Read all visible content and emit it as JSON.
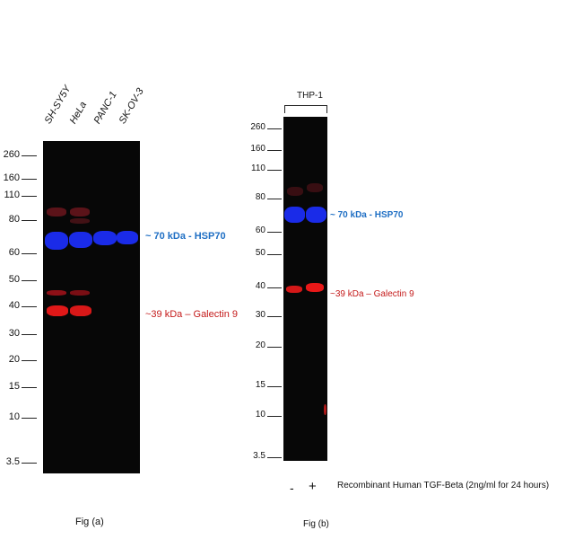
{
  "fig_a": {
    "lanes": [
      "SH-SY5Y",
      "HeLa",
      "PANC-1",
      "SK-OV-3"
    ],
    "markers": [
      "260",
      "160",
      "110",
      "80",
      "60",
      "50",
      "40",
      "30",
      "20",
      "15",
      "10",
      "3.5"
    ],
    "hsp70_label": "~ 70 kDa - HSP70",
    "galectin_label": "~39 kDa – Galectin 9",
    "caption": "Fig (a)"
  },
  "fig_b": {
    "group_label": "THP-1",
    "markers": [
      "260",
      "160",
      "110",
      "80",
      "60",
      "50",
      "40",
      "30",
      "20",
      "15",
      "10",
      "3.5"
    ],
    "hsp70_label": "~ 70 kDa - HSP70",
    "galectin_label": "~39 kDa – Galectin 9",
    "treatment_minus": "-",
    "treatment_plus": "+",
    "treatment_label": "Recombinant Human TGF-Beta (2ng/ml for 24 hours)",
    "caption": "Fig (b)"
  },
  "colors": {
    "hsp70": "#1f6fc4",
    "galectin": "#c41a1a"
  }
}
